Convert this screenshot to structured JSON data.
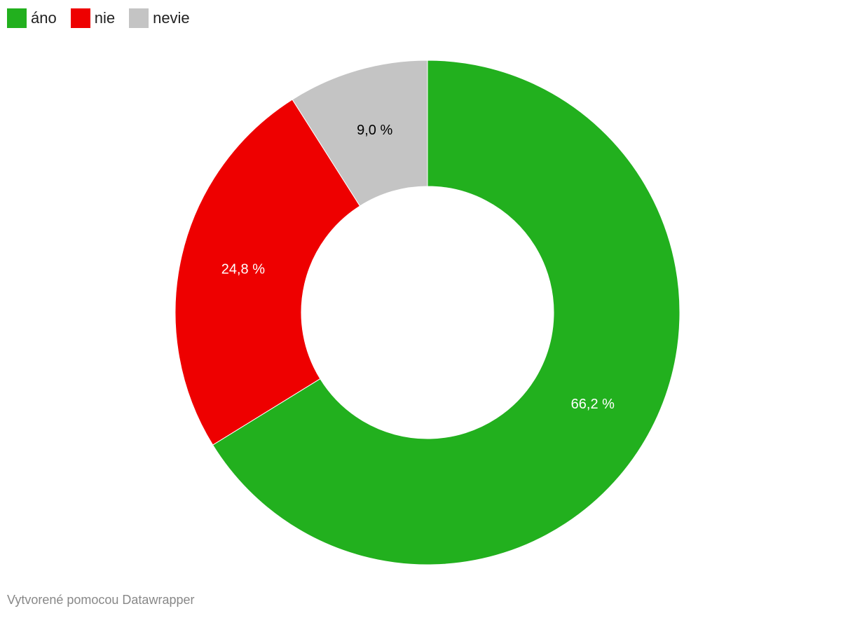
{
  "chart_data": {
    "type": "donut",
    "categories": [
      "áno",
      "nie",
      "nevie"
    ],
    "series": [
      {
        "values": [
          66.2,
          24.8,
          9.0
        ],
        "value_labels": [
          "66,2 %",
          "24,8 %",
          "9,0 %"
        ]
      }
    ],
    "colors": [
      "#22b01e",
      "#ee0000",
      "#c4c4c4"
    ],
    "source": "Vytvorené pomocou Datawrapper"
  }
}
